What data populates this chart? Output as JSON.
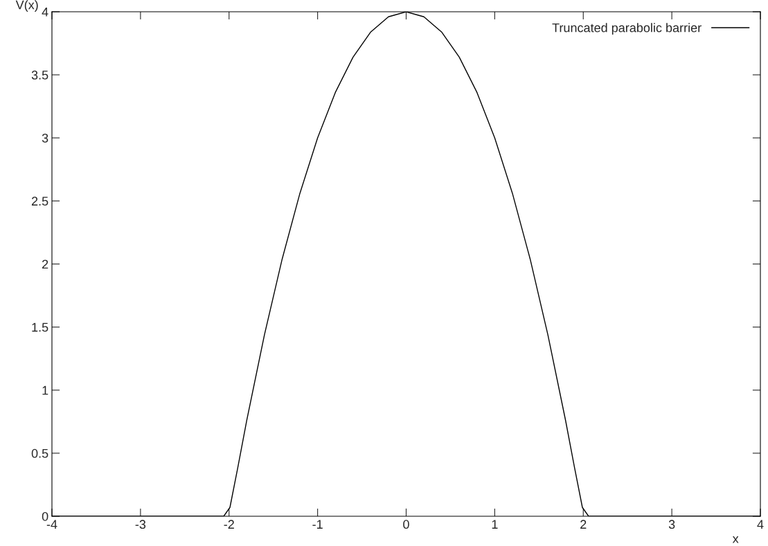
{
  "chart_data": {
    "type": "line",
    "xlabel": "x",
    "ylabel": "V(x)",
    "xlim": [
      -4,
      4
    ],
    "xticks": [
      -4,
      -3,
      -2,
      -1,
      0,
      1,
      2,
      3,
      4
    ],
    "ylim": [
      0,
      4
    ],
    "yticks": [
      0,
      0.5,
      1,
      1.5,
      2,
      2.5,
      3,
      3.5,
      4
    ],
    "grid": false,
    "legend": "top right",
    "line_style": "solid",
    "marker": "none",
    "series": [
      {
        "name": "Truncated parabolic barrier",
        "color": "#000000",
        "x": [
          -4,
          -2.06,
          -1.99,
          -1.9,
          -1.8,
          -1.6,
          -1.4,
          -1.2,
          -1.0,
          -0.8,
          -0.6,
          -0.4,
          -0.2,
          0,
          0.2,
          0.4,
          0.6,
          0.8,
          1.0,
          1.2,
          1.4,
          1.6,
          1.8,
          1.9,
          1.99,
          2.06,
          4
        ],
        "values": [
          0,
          0,
          0.07,
          0.39,
          0.76,
          1.44,
          2.04,
          2.56,
          3.0,
          3.36,
          3.64,
          3.84,
          3.96,
          4,
          3.96,
          3.84,
          3.64,
          3.36,
          3.0,
          2.56,
          2.04,
          1.44,
          0.76,
          0.39,
          0.07,
          0,
          0
        ]
      }
    ]
  }
}
